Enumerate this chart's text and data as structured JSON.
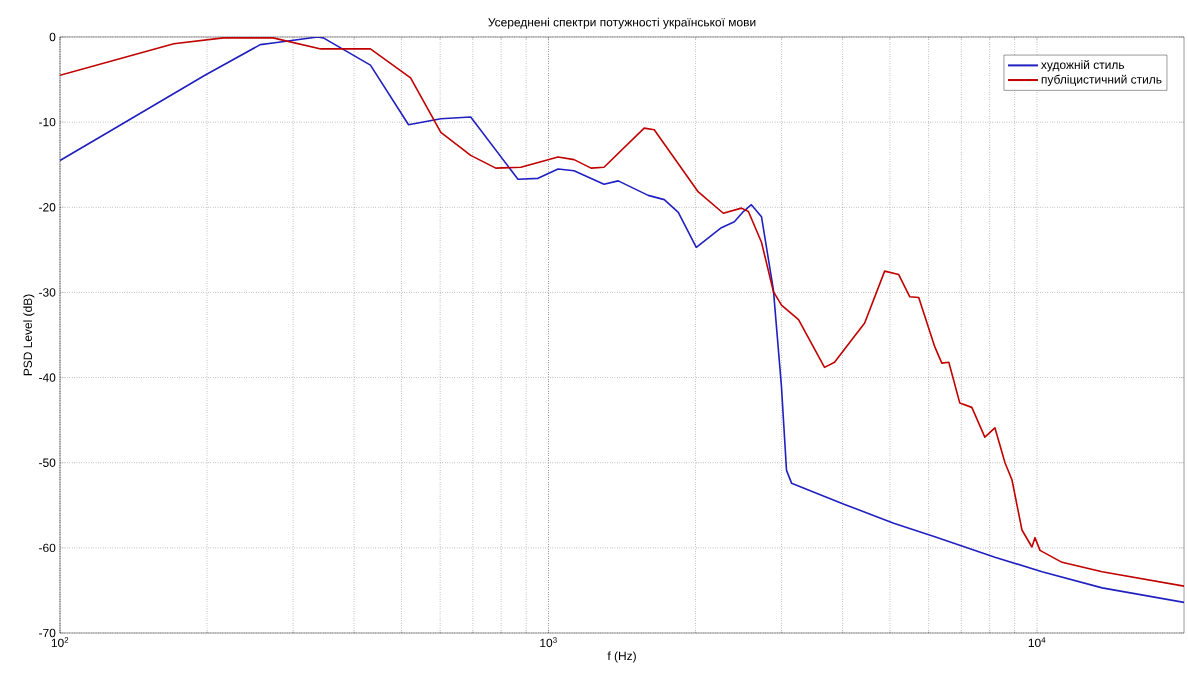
{
  "chart_data": {
    "type": "line",
    "title": "Усереднені спектри потужності української мови",
    "xlabel": "f (Hz)",
    "ylabel": "PSD Level (dB)",
    "log": "x",
    "grid": true,
    "legend": "top right",
    "line_style": "solid",
    "marker": "none",
    "xlim": [
      100,
      20000
    ],
    "ylim": [
      -70,
      0
    ],
    "xticks": [
      {
        "value": 100,
        "label": "10$^{2}$"
      },
      {
        "value": 1000,
        "label": "10$^{3}$"
      },
      {
        "value": 10000,
        "label": "10$^{4}$"
      }
    ],
    "yticks": [
      -70,
      -60,
      -50,
      -40,
      -30,
      -20,
      -10,
      0
    ],
    "series": [
      {
        "name": "художній стиль",
        "color": "#2020c0",
        "x": [
          100,
          128,
          198,
          257,
          273,
          337,
          346,
          432,
          517,
          602,
          693,
          866,
          952,
          1046,
          1128,
          1299,
          1389,
          1600,
          1726,
          1844,
          2007,
          2259,
          2402,
          2506,
          2602,
          2729,
          2887,
          2999,
          3071,
          3145,
          4038,
          5089,
          6178,
          8201,
          10240,
          13595,
          20000
        ],
        "values": [
          -14.5,
          -10.9,
          -4.5,
          -0.9,
          -0.7,
          0,
          -0.1,
          -3.3,
          -10.3,
          -9.6,
          -9.4,
          -16.7,
          -16.6,
          -15.5,
          -15.7,
          -17.3,
          -16.9,
          -18.6,
          -19.1,
          -20.6,
          -24.7,
          -22.4,
          -21.7,
          -20.5,
          -19.7,
          -21.1,
          -29.7,
          -41.1,
          -50.9,
          -52.4,
          -54.9,
          -57.1,
          -58.7,
          -61.1,
          -62.8,
          -64.7,
          -66.4
        ]
      },
      {
        "name": "публіцистичний стиль",
        "color": "#c00000",
        "x": [
          100,
          171,
          216,
          273,
          342,
          432,
          522,
          602,
          693,
          780,
          878,
          1046,
          1128,
          1222,
          1299,
          1570,
          1646,
          2026,
          2280,
          2483,
          2566,
          2729,
          2887,
          2999,
          3250,
          3674,
          3851,
          4439,
          4877,
          5211,
          5489,
          5727,
          6178,
          6385,
          6600,
          6951,
          7356,
          7822,
          8201,
          8600,
          8887,
          9316,
          9764,
          9905,
          10144,
          11254,
          13595,
          20000
        ],
        "values": [
          -4.5,
          -0.8,
          -0.1,
          -0.1,
          -1.4,
          -1.4,
          -4.8,
          -11.2,
          -13.9,
          -15.4,
          -15.3,
          -14.1,
          -14.4,
          -15.4,
          -15.3,
          -10.7,
          -10.9,
          -18.2,
          -20.7,
          -20.1,
          -20.5,
          -24.1,
          -29.9,
          -31.5,
          -33.2,
          -38.8,
          -38.2,
          -33.6,
          -27.5,
          -27.9,
          -30.5,
          -30.6,
          -36.4,
          -38.3,
          -38.2,
          -43.0,
          -43.5,
          -47.0,
          -45.9,
          -50.0,
          -52.0,
          -57.9,
          -59.9,
          -58.8,
          -60.3,
          -61.7,
          -62.8,
          -64.5
        ]
      }
    ]
  }
}
